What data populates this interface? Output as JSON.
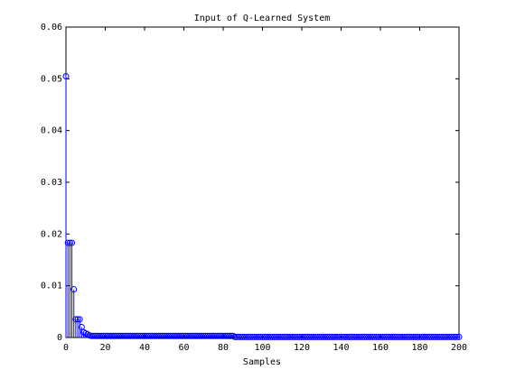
{
  "chart_data": {
    "type": "stem",
    "title": "Input of Q-Learned System",
    "xlabel": "Samples",
    "x": [
      0,
      1,
      2,
      3,
      4,
      5,
      6,
      7,
      8,
      9,
      10,
      11,
      12,
      13,
      14,
      15,
      16,
      17,
      18,
      19,
      20,
      21,
      22,
      23,
      24,
      25,
      26,
      27,
      28,
      29,
      30,
      31,
      32,
      33,
      34,
      35,
      36,
      37,
      38,
      39,
      40,
      41,
      42,
      43,
      44,
      45,
      46,
      47,
      48,
      49,
      50,
      51,
      52,
      53,
      54,
      55,
      56,
      57,
      58,
      59,
      60,
      61,
      62,
      63,
      64,
      65,
      66,
      67,
      68,
      69,
      70,
      71,
      72,
      73,
      74,
      75,
      76,
      77,
      78,
      79,
      80,
      81,
      82,
      83,
      84,
      85,
      86,
      87,
      88,
      89,
      90,
      91,
      92,
      93,
      94,
      95,
      96,
      97,
      98,
      99,
      100,
      101,
      102,
      103,
      104,
      105,
      106,
      107,
      108,
      109,
      110,
      111,
      112,
      113,
      114,
      115,
      116,
      117,
      118,
      119,
      120,
      121,
      122,
      123,
      124,
      125,
      126,
      127,
      128,
      129,
      130,
      131,
      132,
      133,
      134,
      135,
      136,
      137,
      138,
      139,
      140,
      141,
      142,
      143,
      144,
      145,
      146,
      147,
      148,
      149,
      150,
      151,
      152,
      153,
      154,
      155,
      156,
      157,
      158,
      159,
      160,
      161,
      162,
      163,
      164,
      165,
      166,
      167,
      168,
      169,
      170,
      171,
      172,
      173,
      174,
      175,
      176,
      177,
      178,
      179,
      180,
      181,
      182,
      183,
      184,
      185,
      186,
      187,
      188,
      189,
      190,
      191,
      192,
      193,
      194,
      195,
      196,
      197,
      198,
      199,
      200
    ],
    "values": [
      0.0505,
      0.0183,
      0.0183,
      0.0183,
      0.0093,
      0.0035,
      0.0035,
      0.0035,
      0.002,
      0.001,
      0.0008,
      0.0006,
      0.0004,
      0.0003,
      0.0003,
      0.0003,
      0.0003,
      0.0003,
      0.0003,
      0.0003,
      0.0003,
      0.0003,
      0.0003,
      0.0003,
      0.0003,
      0.0003,
      0.0003,
      0.0003,
      0.0003,
      0.0003,
      0.0003,
      0.0003,
      0.0003,
      0.0003,
      0.0003,
      0.0003,
      0.0003,
      0.0003,
      0.0003,
      0.0003,
      0.0003,
      0.0003,
      0.0003,
      0.0003,
      0.0003,
      0.0003,
      0.0003,
      0.0003,
      0.0003,
      0.0003,
      0.0003,
      0.0003,
      0.0003,
      0.0003,
      0.0003,
      0.0003,
      0.0003,
      0.0003,
      0.0003,
      0.0003,
      0.0003,
      0.0003,
      0.0003,
      0.0003,
      0.0003,
      0.0003,
      0.0003,
      0.0003,
      0.0003,
      0.0003,
      0.0003,
      0.0003,
      0.0003,
      0.0003,
      0.0003,
      0.0003,
      0.0003,
      0.0003,
      0.0003,
      0.0003,
      0.0003,
      0.0003,
      0.0003,
      0.0003,
      0.0003,
      0.0003,
      0.0001,
      0.0001,
      0.0001,
      0.0001,
      0.0001,
      0.0001,
      0.0001,
      0.0001,
      0.0001,
      0.0001,
      0.0001,
      0.0001,
      0.0001,
      0.0001,
      0.0001,
      0.0001,
      0.0001,
      0.0001,
      0.0001,
      0.0001,
      0.0001,
      0.0001,
      0.0001,
      0.0001,
      0.0001,
      0.0001,
      0.0001,
      0.0001,
      0.0001,
      0.0001,
      0.0001,
      0.0001,
      0.0001,
      0.0001,
      0.0001,
      0.0001,
      0.0001,
      0.0001,
      0.0001,
      0.0001,
      0.0001,
      0.0001,
      0.0001,
      0.0001,
      0.0001,
      0.0001,
      0.0001,
      0.0001,
      0.0001,
      0.0001,
      0.0001,
      0.0001,
      0.0001,
      0.0001,
      0.0001,
      0.0001,
      0.0001,
      0.0001,
      0.0001,
      0.0001,
      0.0001,
      0.0001,
      0.0001,
      0.0001,
      0.0001,
      0.0001,
      0.0001,
      0.0001,
      0.0001,
      0.0001,
      0.0001,
      0.0001,
      0.0001,
      0.0001,
      0.0001,
      0.0001,
      0.0001,
      0.0001,
      0.0001,
      0.0001,
      0.0001,
      0.0001,
      0.0001,
      0.0001,
      0.0001,
      0.0001,
      0.0001,
      0.0001,
      0.0001,
      0.0001,
      0.0001,
      0.0001,
      0.0001,
      0.0001,
      0.0001,
      0.0001,
      0.0001,
      0.0001,
      0.0001,
      0.0001,
      0.0001,
      0.0001,
      0.0001,
      0.0001,
      0.0001,
      0.0001,
      0.0001,
      0.0001,
      0.0001,
      0.0001,
      0.0001,
      0.0001,
      0.0001,
      0.0001,
      0.0001
    ],
    "color": "#0000ff",
    "xlim": [
      0,
      200
    ],
    "xticks": [
      0,
      20,
      40,
      60,
      80,
      100,
      120,
      140,
      160,
      180,
      200
    ],
    "ylim": [
      0,
      0.06
    ],
    "yticks": [
      0,
      0.01,
      0.02,
      0.03,
      0.04,
      0.05,
      0.06
    ]
  }
}
